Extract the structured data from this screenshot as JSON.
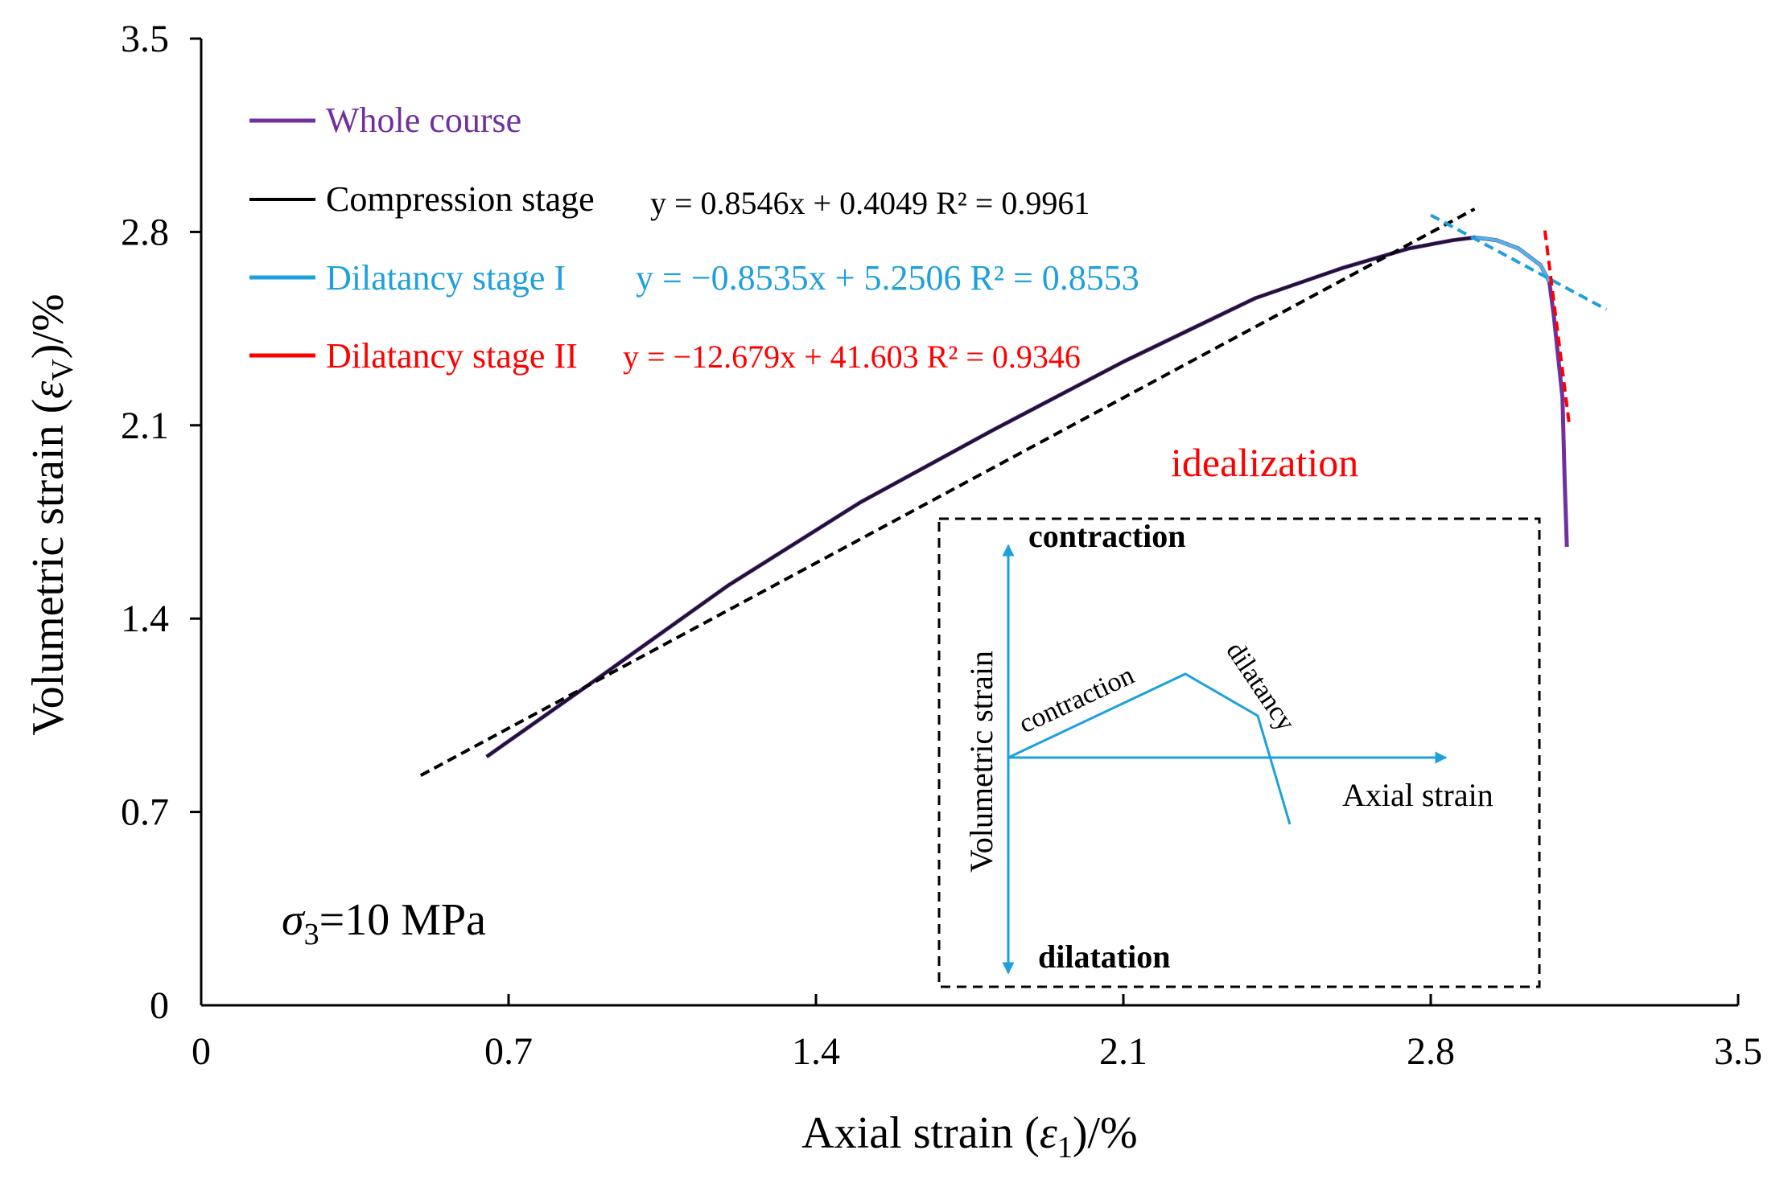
{
  "chart_data": {
    "type": "line",
    "xlabel_main": "Axial strain (",
    "xlabel_sym": "ε",
    "xlabel_sub": "1",
    "xlabel_end": ")/%",
    "ylabel_main": "Volumetric strain (",
    "ylabel_sym": "ε",
    "ylabel_sub": "V",
    "ylabel_end": ")/%",
    "xlim": [
      0,
      3.5
    ],
    "ylim": [
      0,
      3.5
    ],
    "x_ticks": [
      "0",
      "0.7",
      "1.4",
      "2.1",
      "2.8",
      "3.5"
    ],
    "y_ticks": [
      "0",
      "0.7",
      "1.4",
      "2.1",
      "2.8",
      "3.5"
    ],
    "series": [
      {
        "name": "Whole course",
        "color": "#7030a0",
        "x": [
          0.65,
          0.9,
          1.2,
          1.5,
          1.8,
          2.1,
          2.4,
          2.6,
          2.75,
          2.85,
          2.9,
          2.95,
          3.0,
          3.05,
          3.07,
          3.08,
          3.1,
          3.105,
          3.11
        ],
        "y": [
          0.9,
          1.18,
          1.52,
          1.82,
          2.08,
          2.33,
          2.56,
          2.67,
          2.74,
          2.77,
          2.78,
          2.77,
          2.74,
          2.68,
          2.62,
          2.5,
          2.2,
          1.9,
          1.66
        ]
      }
    ],
    "fits": [
      {
        "name": "Compression stage",
        "equation": "y = 0.8546x + 0.4049 R² = 0.9961",
        "color": "#000000",
        "x": [
          0.5,
          2.9
        ],
        "y": [
          0.8322,
          2.8832
        ]
      },
      {
        "name": "Dilatancy stage I",
        "equation": "y = −0.8535x + 5.2506 R² = 0.8553",
        "color": "#1ea0dc",
        "x": [
          2.8,
          3.2
        ],
        "y": [
          2.861,
          2.5194
        ]
      },
      {
        "name": "Dilatancy stage II",
        "equation": "y = −12.679x + 41.603 R² = 0.9346",
        "color": "#ff0000",
        "x": [
          3.06,
          3.115
        ],
        "y": [
          2.8053,
          2.1079
        ]
      }
    ],
    "legend": {
      "placement": "top-left",
      "entries": [
        {
          "label": "Whole course",
          "color": "#7030a0",
          "equation": ""
        },
        {
          "label": "Compression stage",
          "color": "#000000",
          "equation": "y = 0.8546x + 0.4049 R² = 0.9961"
        },
        {
          "label": "Dilatancy stage I",
          "color": "#1ea0dc",
          "equation": "y = −0.8535x + 5.2506 R² = 0.8553"
        },
        {
          "label": "Dilatancy stage II",
          "color": "#ff0000",
          "equation": "y = −12.679x + 41.603 R² = 0.9346"
        }
      ]
    },
    "annotations": {
      "idealization": "idealization",
      "sigma_sym": "σ",
      "sigma_sub": "3",
      "sigma_value": "=10 MPa"
    },
    "inset": {
      "contraction_top": "contraction",
      "dilatation_bottom": "dilatation",
      "vertical_axis_label": "Volumetric strain",
      "horizontal_axis_label": "Axial strain",
      "rising_segment_label": "contraction",
      "falling_segment_label": "dilatancy"
    }
  }
}
